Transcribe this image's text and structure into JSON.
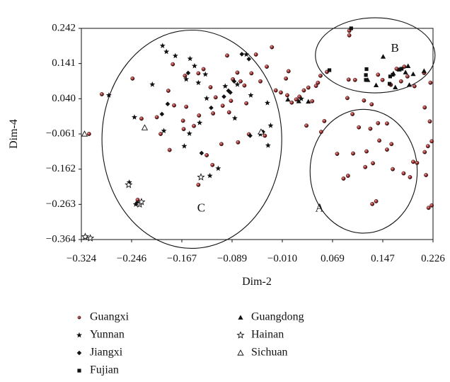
{
  "chart_data": {
    "type": "scatter",
    "title": "",
    "xlabel": "Dim-2",
    "ylabel": "Dim-4",
    "xlim": [
      -0.324,
      0.226
    ],
    "ylim": [
      -0.364,
      0.242
    ],
    "x_ticks": [
      "−0.324",
      "−0.246",
      "−0.167",
      "−0.089",
      "−0.010",
      "0.069",
      "0.147",
      "0.226"
    ],
    "y_ticks": [
      "0.242",
      "0.141",
      "0.040",
      "−0.061",
      "−0.162",
      "−0.263",
      "−0.364"
    ],
    "grid": false,
    "legend_position": "bottom",
    "region_labels": [
      "A",
      "B",
      "C"
    ],
    "series": [
      {
        "name": "Guangxi",
        "marker": "dot",
        "points": [
          [
            0.095,
            0.235
          ],
          [
            0.095,
            0.222
          ],
          [
            0.06,
            0.117
          ],
          [
            0.05,
            0.106
          ],
          [
            0.046,
            0.086
          ],
          [
            0.043,
            0.077
          ],
          [
            0.031,
            0.072
          ],
          [
            0.024,
            0.064
          ],
          [
            0.017,
            0.046
          ],
          [
            0.012,
            0.038
          ],
          [
            0.005,
            0.029
          ],
          [
            0.0,
            0.119
          ],
          [
            -0.004,
            0.098
          ],
          [
            -0.012,
            0.058
          ],
          [
            -0.002,
            0.05
          ],
          [
            0.094,
            0.095
          ],
          [
            0.104,
            0.094
          ],
          [
            0.14,
            0.109
          ],
          [
            0.169,
            0.126
          ],
          [
            0.181,
            0.132
          ],
          [
            0.212,
            0.114
          ],
          [
            0.222,
            0.086
          ],
          [
            0.197,
            0.076
          ],
          [
            0.16,
            0.08
          ],
          [
            0.176,
            0.09
          ],
          [
            0.13,
            0.024
          ],
          [
            0.118,
            0.035
          ],
          [
            0.092,
            0.042
          ],
          [
            0.213,
            0.015
          ],
          [
            0.221,
            -0.025
          ],
          [
            0.224,
            -0.082
          ],
          [
            0.218,
            -0.096
          ],
          [
            0.213,
            -0.113
          ],
          [
            0.154,
            -0.031
          ],
          [
            0.14,
            -0.03
          ],
          [
            0.128,
            -0.046
          ],
          [
            0.11,
            -0.042
          ],
          [
            0.142,
            -0.08
          ],
          [
            0.161,
            -0.09
          ],
          [
            0.154,
            -0.106
          ],
          [
            0.122,
            -0.111
          ],
          [
            0.101,
            -0.117
          ],
          [
            0.132,
            -0.145
          ],
          [
            0.12,
            -0.156
          ],
          [
            0.093,
            -0.181
          ],
          [
            0.086,
            -0.189
          ],
          [
            0.163,
            -0.162
          ],
          [
            0.18,
            -0.174
          ],
          [
            0.195,
            -0.141
          ],
          [
            0.201,
            -0.144
          ],
          [
            0.19,
            -0.185
          ],
          [
            0.215,
            -0.179
          ],
          [
            0.137,
            -0.254
          ],
          [
            0.131,
            -0.262
          ],
          [
            0.224,
            -0.266
          ],
          [
            0.219,
            -0.273
          ],
          [
            0.076,
            -0.118
          ],
          [
            0.056,
            -0.024
          ],
          [
            0.051,
            -0.055
          ],
          [
            0.037,
            0.033
          ],
          [
            0.028,
            -0.037
          ],
          [
            0.1,
            -0.004
          ],
          [
            0.186,
            0.104
          ],
          [
            0.147,
            0.094
          ],
          [
            -0.312,
            -0.061
          ],
          [
            -0.292,
            0.053
          ],
          [
            -0.244,
            0.098
          ],
          [
            -0.23,
            -0.017
          ],
          [
            -0.236,
            -0.25
          ],
          [
            -0.188,
            0.063
          ],
          [
            -0.2,
            -0.061
          ],
          [
            -0.186,
            -0.107
          ],
          [
            -0.165,
            -0.023
          ],
          [
            -0.148,
            -0.038
          ],
          [
            -0.14,
            -0.008
          ],
          [
            -0.162,
            0.106
          ],
          [
            -0.141,
            0.113
          ],
          [
            -0.133,
            0.125
          ],
          [
            -0.122,
            0.073
          ],
          [
            -0.114,
            0.044
          ],
          [
            -0.103,
            0.02
          ],
          [
            -0.09,
            0.034
          ],
          [
            -0.087,
            0.096
          ],
          [
            -0.08,
            0.115
          ],
          [
            -0.075,
            0.09
          ],
          [
            -0.069,
            0.078
          ],
          [
            -0.066,
            0.027
          ],
          [
            -0.058,
            0.113
          ],
          [
            -0.051,
            0.167
          ],
          [
            -0.044,
            0.09
          ],
          [
            -0.034,
            0.132
          ],
          [
            -0.026,
            0.188
          ],
          [
            -0.02,
            0.064
          ],
          [
            -0.037,
            -0.066
          ],
          [
            -0.105,
            -0.09
          ],
          [
            -0.128,
            -0.122
          ],
          [
            -0.119,
            -0.15
          ],
          [
            -0.141,
            -0.207
          ],
          [
            -0.164,
            -0.047
          ],
          [
            -0.079,
            -0.085
          ],
          [
            -0.181,
            0.139
          ],
          [
            -0.206,
            -0.013
          ],
          [
            -0.179,
            0.021
          ],
          [
            -0.16,
            0.017
          ],
          [
            -0.118,
            -0.002
          ],
          [
            -0.093,
            0.001
          ],
          [
            -0.062,
            -0.062
          ],
          [
            -0.096,
            0.164
          ]
        ]
      },
      {
        "name": "Yunnan",
        "marker": "star",
        "points": [
          [
            -0.281,
            0.05
          ],
          [
            -0.241,
            -0.013
          ],
          [
            -0.213,
            0.081
          ],
          [
            -0.197,
            0.192
          ],
          [
            -0.191,
            0.175
          ],
          [
            -0.177,
            0.163
          ],
          [
            -0.154,
            0.155
          ],
          [
            -0.147,
            0.134
          ],
          [
            -0.13,
            0.11
          ],
          [
            -0.141,
            0.086
          ],
          [
            -0.128,
            0.041
          ],
          [
            -0.099,
            0.076
          ],
          [
            -0.084,
            -0.016
          ],
          [
            -0.08,
            0.081
          ],
          [
            -0.066,
            0.167
          ],
          [
            -0.059,
            0.05
          ],
          [
            -0.044,
            -0.062
          ],
          [
            -0.032,
            -0.094
          ],
          [
            -0.028,
            -0.037
          ],
          [
            -0.163,
            -0.096
          ],
          [
            -0.123,
            -0.181
          ],
          [
            -0.11,
            -0.16
          ],
          [
            -0.16,
            0.096
          ],
          [
            -0.239,
            -0.263
          ],
          [
            -0.249,
            -0.2
          ],
          [
            -0.139,
            -0.029
          ],
          [
            -0.033,
            0.028
          ],
          [
            0.02,
            0.04
          ],
          [
            -0.195,
            -0.052
          ],
          [
            -0.155,
            -0.06
          ]
        ]
      },
      {
        "name": "Jiangxi",
        "marker": "diamond",
        "points": [
          [
            -0.237,
            -0.259
          ],
          [
            -0.198,
            -0.004
          ],
          [
            -0.189,
            0.025
          ],
          [
            -0.157,
            0.114
          ],
          [
            -0.121,
            0.014
          ],
          [
            -0.101,
            0.046
          ],
          [
            -0.091,
            0.058
          ],
          [
            -0.085,
            0.09
          ],
          [
            -0.073,
            0.168
          ],
          [
            -0.062,
            0.154
          ],
          [
            -0.06,
            -0.066
          ],
          [
            -0.04,
            -0.055
          ],
          [
            -0.136,
            -0.116
          ],
          [
            -0.094,
            0.063
          ]
        ]
      },
      {
        "name": "Fujian",
        "marker": "square",
        "points": [
          [
            0.098,
            0.242
          ],
          [
            0.064,
            0.122
          ],
          [
            0.122,
            0.125
          ],
          [
            0.121,
            0.108
          ],
          [
            0.121,
            0.094
          ],
          [
            0.159,
            0.104
          ],
          [
            0.158,
            0.083
          ],
          [
            0.177,
            0.126
          ],
          [
            0.163,
            0.109
          ]
        ]
      },
      {
        "name": "Guangdong",
        "marker": "triangle",
        "points": [
          [
            0.148,
            0.161
          ],
          [
            0.164,
            0.113
          ],
          [
            0.173,
            0.124
          ],
          [
            0.187,
            0.134
          ],
          [
            0.183,
            0.116
          ],
          [
            0.195,
            0.111
          ],
          [
            0.212,
            0.12
          ],
          [
            0.137,
            0.079
          ],
          [
            0.124,
            0.094
          ],
          [
            0.016,
            0.033
          ],
          [
            -0.001,
            0.038
          ],
          [
            0.031,
            0.032
          ],
          [
            0.167,
            0.073
          ],
          [
            0.189,
            0.08
          ]
        ]
      },
      {
        "name": "Hainan",
        "marker": "star-open",
        "points": [
          [
            -0.25,
            -0.207
          ],
          [
            -0.233,
            -0.263
          ],
          [
            -0.23,
            -0.256
          ],
          [
            -0.137,
            -0.185
          ],
          [
            -0.318,
            -0.356
          ],
          [
            -0.31,
            -0.36
          ]
        ]
      },
      {
        "name": "Sichuan",
        "marker": "triangle-open",
        "points": [
          [
            -0.319,
            -0.061
          ],
          [
            -0.225,
            -0.043
          ],
          [
            -0.043,
            -0.055
          ]
        ]
      }
    ],
    "ellipses": [
      {
        "label": "A",
        "center": [
          0.1175,
          -0.168
        ],
        "radius_x": 0.0838,
        "radius_y": 0.1776
      },
      {
        "label": "B",
        "center": [
          0.1356,
          0.1646
        ],
        "radius_x": 0.0936,
        "radius_y": 0.1078
      },
      {
        "label": "C",
        "center": [
          -0.1512,
          -0.0762
        ],
        "radius_x": 0.1406,
        "radius_y": 0.3131
      }
    ]
  }
}
